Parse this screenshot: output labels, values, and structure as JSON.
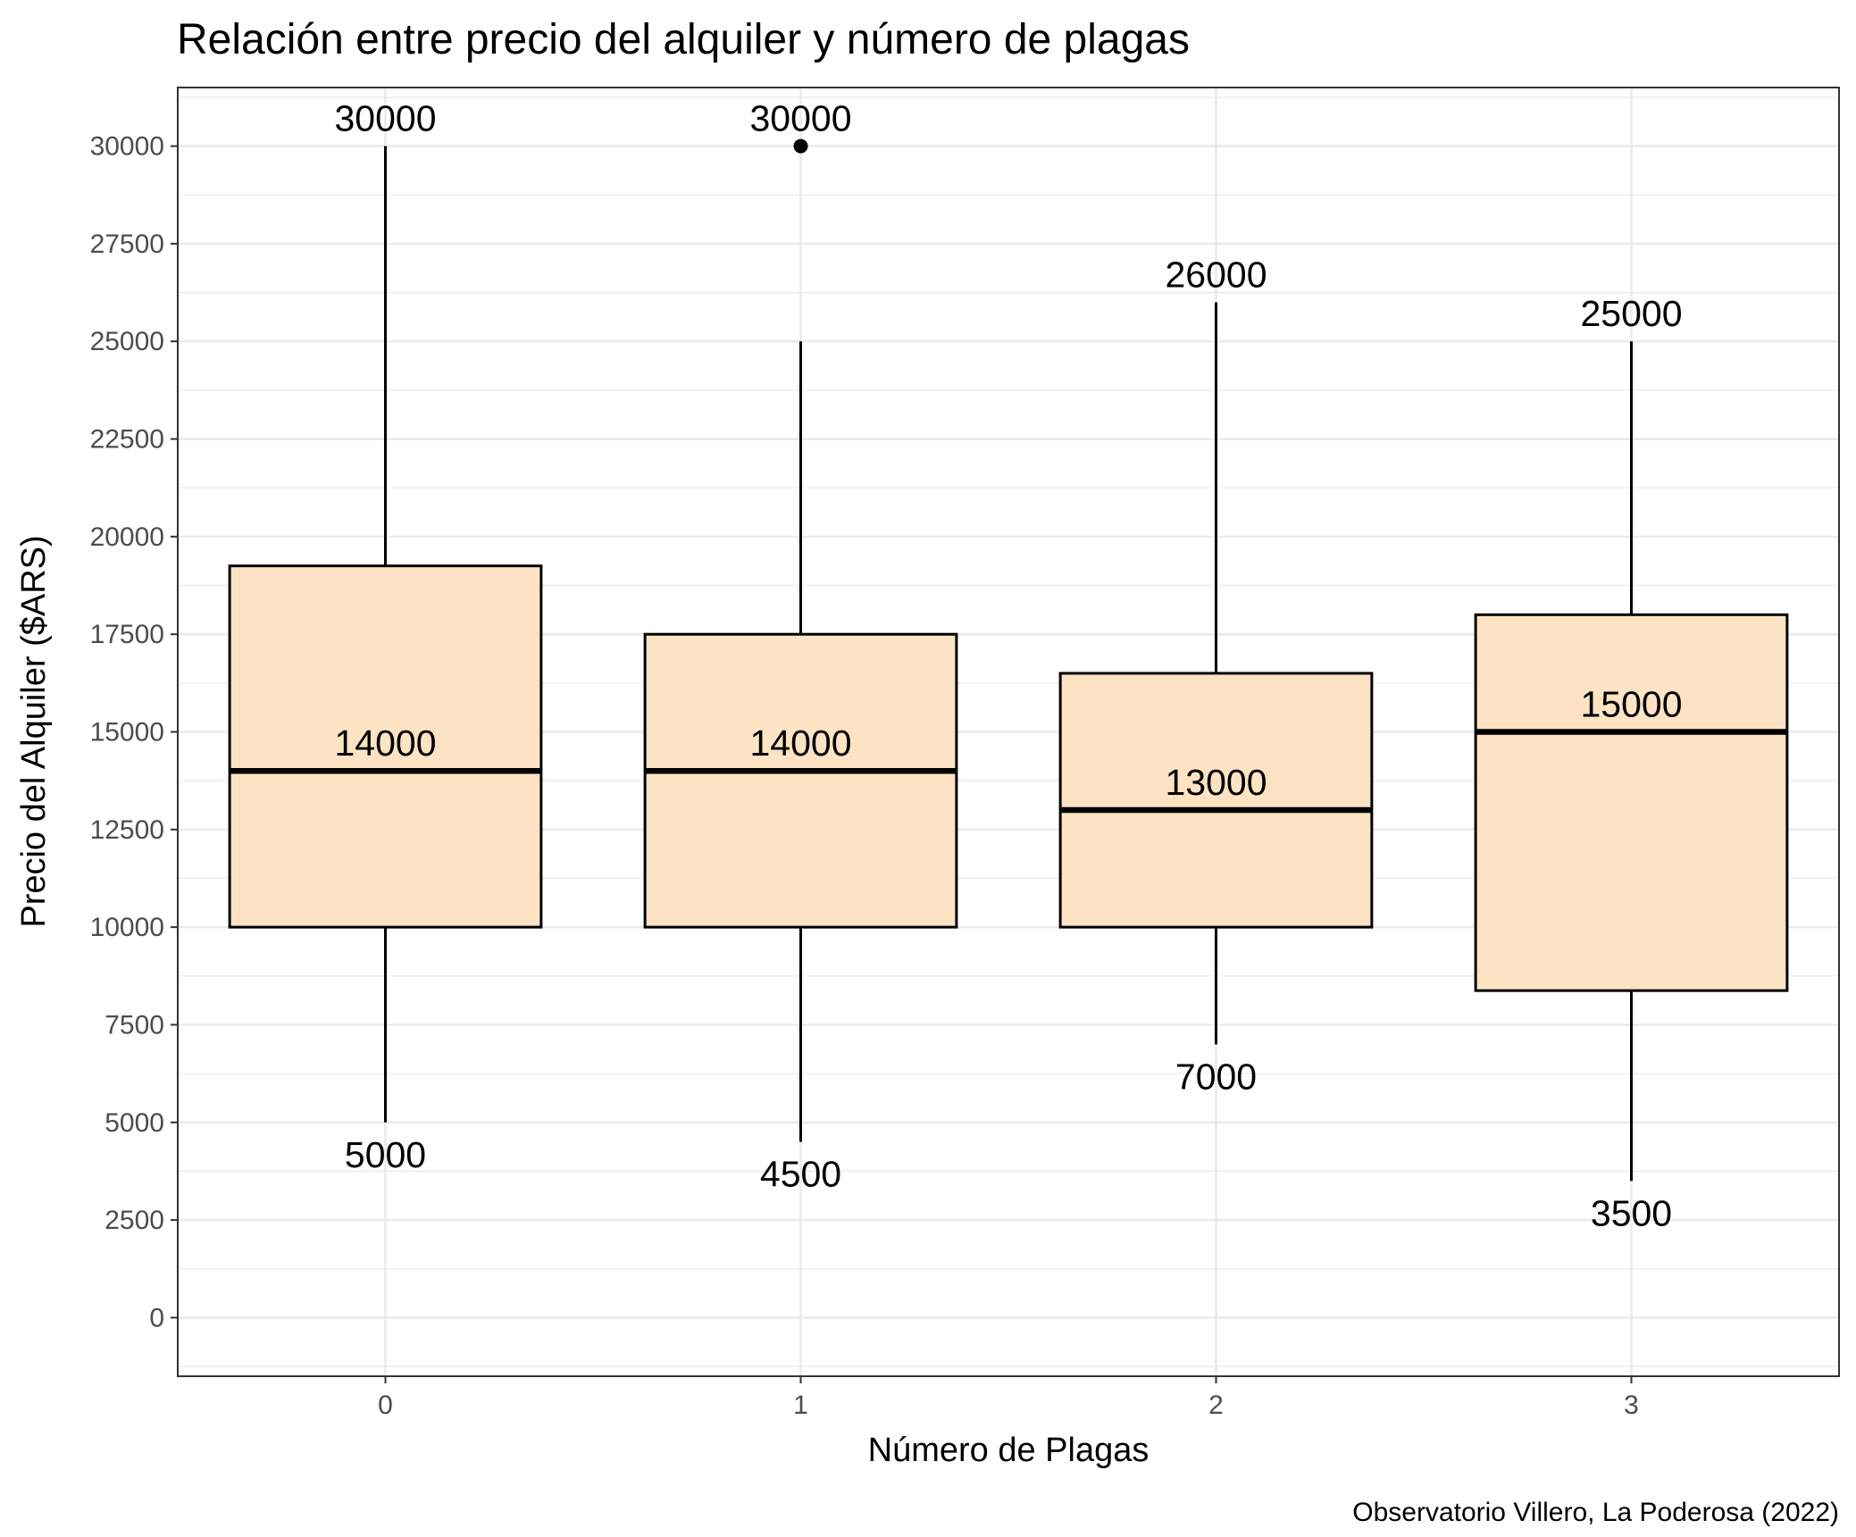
{
  "chart_data": {
    "type": "box",
    "title": "Relación entre precio del alquiler y número de plagas",
    "xlabel": "Número de Plagas",
    "ylabel": "Precio del Alquiler ($ARS)",
    "caption": "Observatorio Villero, La Poderosa (2022)",
    "categories": [
      "0",
      "1",
      "2",
      "3"
    ],
    "yticks": [
      0,
      2500,
      5000,
      7500,
      10000,
      12500,
      15000,
      17500,
      20000,
      22500,
      25000,
      27500,
      30000
    ],
    "ylim": [
      -1500,
      31500
    ],
    "grid": true,
    "box_fill": "#FDE3C3",
    "boxes": [
      {
        "category": "0",
        "whisker_low": 5000,
        "q1": 10000,
        "median": 14000,
        "q3": 19250,
        "whisker_high": 30000,
        "outliers": []
      },
      {
        "category": "1",
        "whisker_low": 4500,
        "q1": 10000,
        "median": 14000,
        "q3": 17500,
        "whisker_high": 25000,
        "outliers": [
          30000
        ]
      },
      {
        "category": "2",
        "whisker_low": 7000,
        "q1": 10000,
        "median": 13000,
        "q3": 16500,
        "whisker_high": 26000,
        "outliers": []
      },
      {
        "category": "3",
        "whisker_low": 3500,
        "q1": 8375,
        "median": 15000,
        "q3": 18000,
        "whisker_high": 25000,
        "outliers": []
      }
    ],
    "labels": [
      {
        "category": "0",
        "value": 30000,
        "text": "30000"
      },
      {
        "category": "0",
        "value": 14000,
        "text": "14000"
      },
      {
        "category": "0",
        "value": 5000,
        "text": "5000"
      },
      {
        "category": "1",
        "value": 30000,
        "text": "30000"
      },
      {
        "category": "1",
        "value": 14000,
        "text": "14000"
      },
      {
        "category": "1",
        "value": 4500,
        "text": "4500"
      },
      {
        "category": "2",
        "value": 26000,
        "text": "26000"
      },
      {
        "category": "2",
        "value": 13000,
        "text": "13000"
      },
      {
        "category": "2",
        "value": 7000,
        "text": "7000"
      },
      {
        "category": "3",
        "value": 25000,
        "text": "25000"
      },
      {
        "category": "3",
        "value": 15000,
        "text": "15000"
      },
      {
        "category": "3",
        "value": 3500,
        "text": "3500"
      }
    ]
  }
}
